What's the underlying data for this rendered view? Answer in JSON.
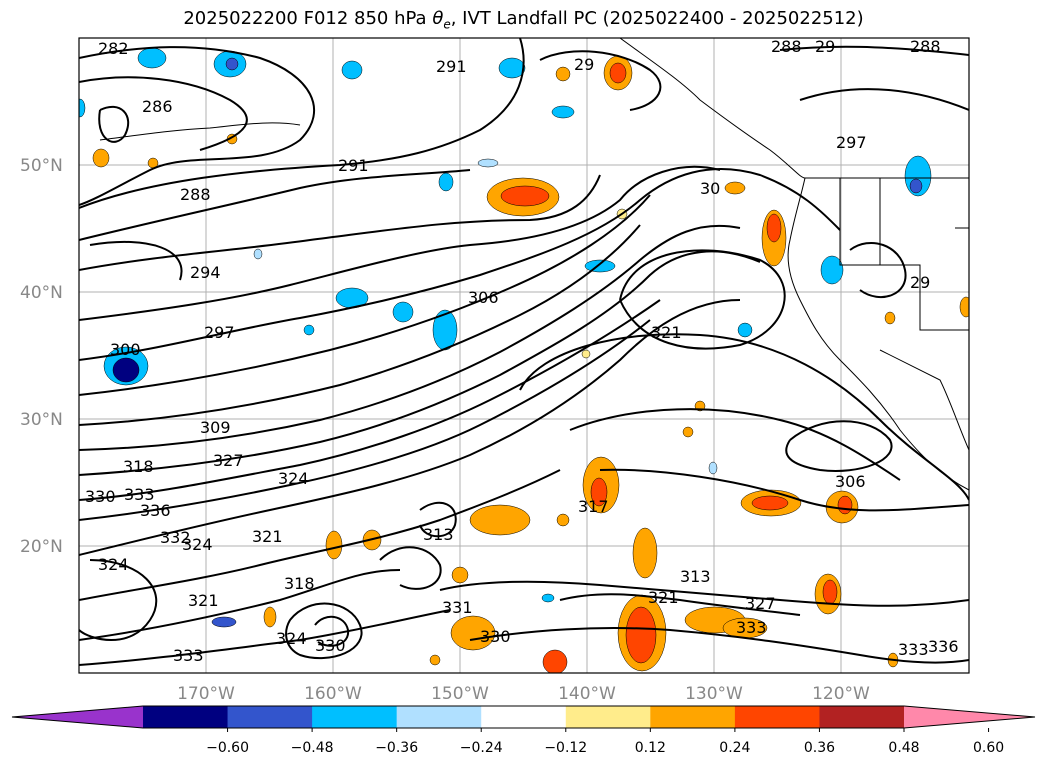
{
  "title": {
    "prefix": "2025022200 F012 850 hPa ",
    "symbol": "θ",
    "subscript": "e",
    "suffix": ", IVT Landfall PC (2025022400 - 2025022512)"
  },
  "map": {
    "lat_labels": [
      "50°N",
      "40°N",
      "30°N",
      "20°N"
    ],
    "lon_labels": [
      "170°W",
      "160°W",
      "150°W",
      "140°W",
      "130°W",
      "120°W"
    ],
    "contour_labels": [
      "282",
      "291",
      "29",
      "288",
      "29",
      "288",
      "286",
      "291",
      "297",
      "288",
      "294",
      "306",
      "297",
      "30",
      "321",
      "300",
      "309",
      "318",
      "327",
      "324",
      "330",
      "333",
      "336",
      "324",
      "321",
      "332",
      "324",
      "317",
      "313",
      "306",
      "318",
      "321",
      "324",
      "330",
      "331",
      "333",
      "330",
      "327",
      "333",
      "321",
      "313",
      "333",
      "336",
      "29"
    ]
  },
  "colorbar": {
    "colors": [
      "#9933cc",
      "#000080",
      "#3355cc",
      "#00bfff",
      "#b0e0ff",
      "#ffffff",
      "#ffec8b",
      "#ffa500",
      "#ff4500",
      "#b22222",
      "#ff88aa"
    ],
    "tick_labels": [
      "−0.60",
      "−0.48",
      "−0.36",
      "−0.24",
      "−0.12",
      "0.12",
      "0.24",
      "0.36",
      "0.48",
      "0.60"
    ]
  }
}
